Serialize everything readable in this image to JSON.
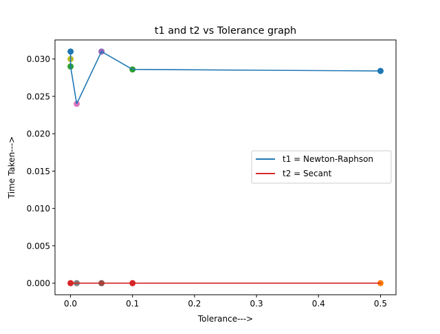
{
  "chart_data": {
    "type": "line",
    "title": "t1 and t2 vs Tolerance graph",
    "xlabel": "Tolerance--->",
    "ylabel": "Time Taken--->",
    "xlim": [
      -0.025,
      0.525
    ],
    "ylim": [
      -0.00155,
      0.03255
    ],
    "xticks": [
      0.0,
      0.1,
      0.2,
      0.3,
      0.4,
      0.5
    ],
    "xtick_labels": [
      "0.0",
      "0.1",
      "0.2",
      "0.3",
      "0.4",
      "0.5"
    ],
    "yticks": [
      0.0,
      0.005,
      0.01,
      0.015,
      0.02,
      0.025,
      0.03
    ],
    "ytick_labels": [
      "0.000",
      "0.005",
      "0.010",
      "0.015",
      "0.020",
      "0.025",
      "0.030"
    ],
    "grid": false,
    "legend_position": "center-right",
    "series": [
      {
        "name": "t1 = Newton-Raphson",
        "color": "#1f77b4",
        "x": [
          0.0001,
          0.0001,
          0.01,
          0.05,
          0.1,
          0.5
        ],
        "y": [
          0.031,
          0.029,
          0.024,
          0.031,
          0.0286,
          0.0284
        ]
      },
      {
        "name": "t2 = Secant",
        "color": "#d62728",
        "x": [
          0.0001,
          0.001,
          0.01,
          0.05,
          0.1,
          0.5
        ],
        "y": [
          0.0,
          0.0,
          0.0,
          0.0,
          0.0,
          0.0
        ]
      }
    ],
    "scatter_points": [
      {
        "x": 0.0001,
        "y": 0.031,
        "color": "#1f77b4"
      },
      {
        "x": 0.5,
        "y": 0.0284,
        "color": "#1f77b4"
      },
      {
        "x": 0.5,
        "y": 0.0,
        "color": "#ff7f0e"
      },
      {
        "x": 0.0001,
        "y": 0.029,
        "color": "#2ca02c"
      },
      {
        "x": 0.1,
        "y": 0.0286,
        "color": "#2ca02c"
      },
      {
        "x": 0.0001,
        "y": 0.0,
        "color": "#d62728"
      },
      {
        "x": 0.1,
        "y": 0.0,
        "color": "#d62728"
      },
      {
        "x": 0.05,
        "y": 0.031,
        "color": "#9467bd"
      },
      {
        "x": 0.05,
        "y": 0.0,
        "color": "#8c564b"
      },
      {
        "x": 0.01,
        "y": 0.024,
        "color": "#e377c2"
      },
      {
        "x": 0.01,
        "y": 0.0,
        "color": "#7f7f7f"
      },
      {
        "x": 0.0001,
        "y": 0.03,
        "color": "#bcbd22"
      }
    ]
  }
}
